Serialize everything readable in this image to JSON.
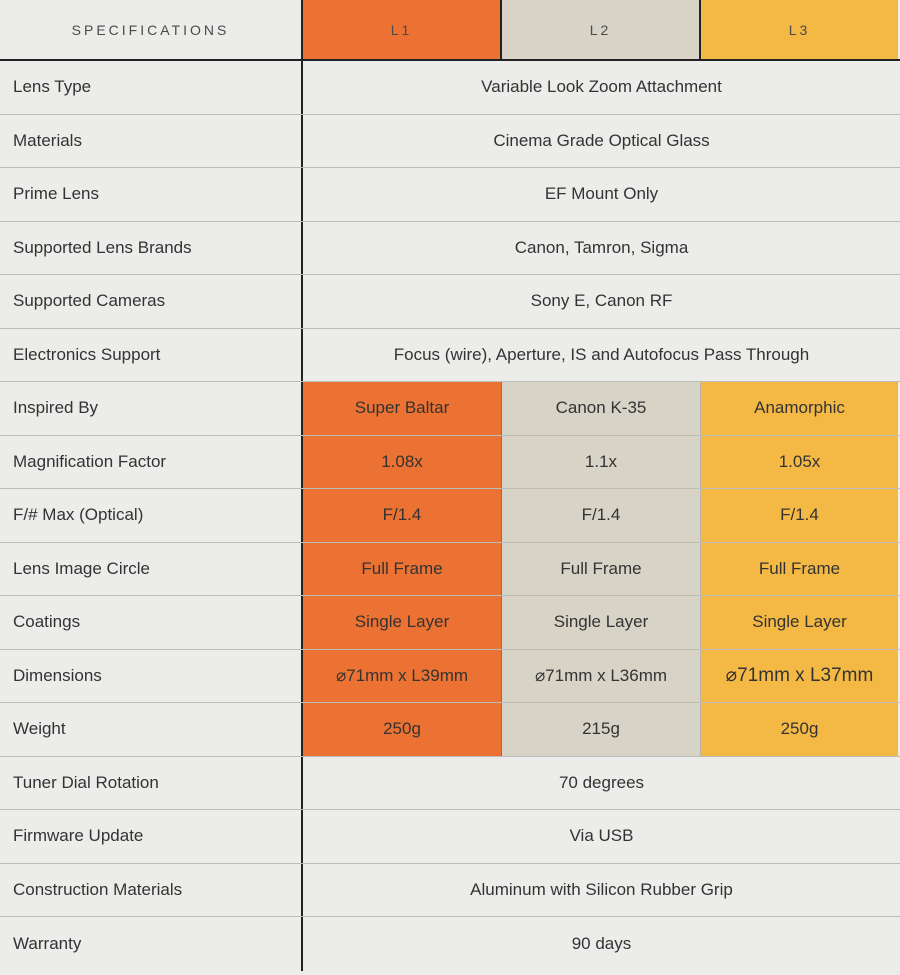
{
  "header": {
    "spec_label": "SPECIFICATIONS",
    "col1": "L1",
    "col2": "L2",
    "col3": "L3"
  },
  "colors": {
    "l1": "#ec7233",
    "l2": "#d7d3c6",
    "l3": "#f4b944",
    "background": "#ececea"
  },
  "rows": [
    {
      "label": "Lens Type",
      "value": "Variable Look Zoom Attachment"
    },
    {
      "label": "Materials",
      "value": "Cinema Grade Optical Glass"
    },
    {
      "label": "Prime Lens",
      "value": "EF Mount Only"
    },
    {
      "label": "Supported Lens Brands",
      "value": "Canon, Tamron, Sigma"
    },
    {
      "label": "Supported Cameras",
      "value": "Sony E, Canon RF"
    },
    {
      "label": "Electronics Support",
      "value": "Focus (wire), Aperture, IS and Autofocus Pass Through"
    },
    {
      "label": "Inspired By",
      "values": [
        "Super Baltar",
        "Canon K-35",
        "Anamorphic"
      ]
    },
    {
      "label": "Magnification Factor",
      "values": [
        "1.08x",
        "1.1x",
        "1.05x"
      ]
    },
    {
      "label": "F/# Max (Optical)",
      "values": [
        "F/1.4",
        "F/1.4",
        "F/1.4"
      ]
    },
    {
      "label": "Lens Image Circle",
      "values": [
        "Full Frame",
        "Full Frame",
        "Full Frame"
      ]
    },
    {
      "label": "Coatings",
      "values": [
        "Single Layer",
        "Single Layer",
        "Single Layer"
      ]
    },
    {
      "label": "Dimensions",
      "values": [
        "⌀71mm x L39mm",
        "⌀71mm x L36mm",
        "⌀71mm x L37mm"
      ]
    },
    {
      "label": "Weight",
      "values": [
        "250g",
        "215g",
        "250g"
      ]
    },
    {
      "label": "Tuner Dial Rotation",
      "value": "70 degrees"
    },
    {
      "label": "Firmware Update",
      "value": "Via USB"
    },
    {
      "label": "Construction Materials",
      "value": "Aluminum with Silicon Rubber Grip"
    },
    {
      "label": "Warranty",
      "value": "90 days"
    }
  ]
}
